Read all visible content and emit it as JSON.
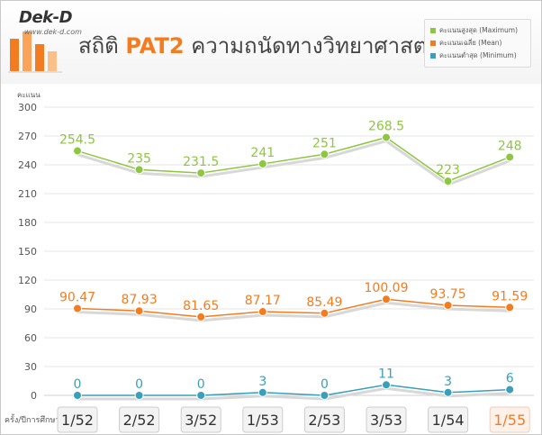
{
  "logo": {
    "name": "Dek-D",
    "url_text": "www.dek-d.com"
  },
  "title": {
    "plain": "สถิติ",
    "highlight": "PAT2",
    "rest": "ความถนัดทางวิทยาศาสตร์"
  },
  "legend": [
    {
      "label": "คะแนนสูงสุด (Maximum)",
      "color": "#8dc63f"
    },
    {
      "label": "คะแนนเฉลี่ย (Mean)",
      "color": "#f47c20"
    },
    {
      "label": "คะแนนต่ำสุด (Minimum)",
      "color": "#3a9fba"
    }
  ],
  "chart_data": {
    "type": "line",
    "title": "",
    "ylabel": "คะแนน",
    "xlabel": "ครั้ง/ปีการศึกษา",
    "ylim": [
      0,
      300
    ],
    "yticks": [
      0,
      30,
      60,
      90,
      120,
      150,
      180,
      210,
      240,
      270,
      300
    ],
    "grid": true,
    "legend_position": "top-right",
    "categories": [
      "1/52",
      "2/52",
      "3/52",
      "1/53",
      "2/53",
      "3/53",
      "1/54",
      "1/55"
    ],
    "highlight_category": "1/55",
    "series": [
      {
        "name": "คะแนนสูงสุด (Maximum)",
        "color": "#8dc63f",
        "values": [
          254.5,
          235,
          231.5,
          241,
          251,
          268.5,
          223,
          248
        ],
        "labels": [
          "254.5",
          "235",
          "231.5",
          "241",
          "251",
          "268.5",
          "223",
          "248"
        ]
      },
      {
        "name": "คะแนนเฉลี่ย (Mean)",
        "color": "#f47c20",
        "values": [
          90.47,
          87.93,
          81.65,
          87.17,
          85.49,
          100.09,
          93.75,
          91.59
        ],
        "labels": [
          "90.47",
          "87.93",
          "81.65",
          "87.17",
          "85.49",
          "100.09",
          "93.75",
          "91.59"
        ]
      },
      {
        "name": "คะแนนต่ำสุด (Minimum)",
        "color": "#3a9fba",
        "values": [
          0,
          0,
          0,
          3,
          0,
          11,
          3,
          6
        ],
        "labels": [
          "0",
          "0",
          "0",
          "3",
          "0",
          "11",
          "3",
          "6"
        ]
      }
    ]
  }
}
